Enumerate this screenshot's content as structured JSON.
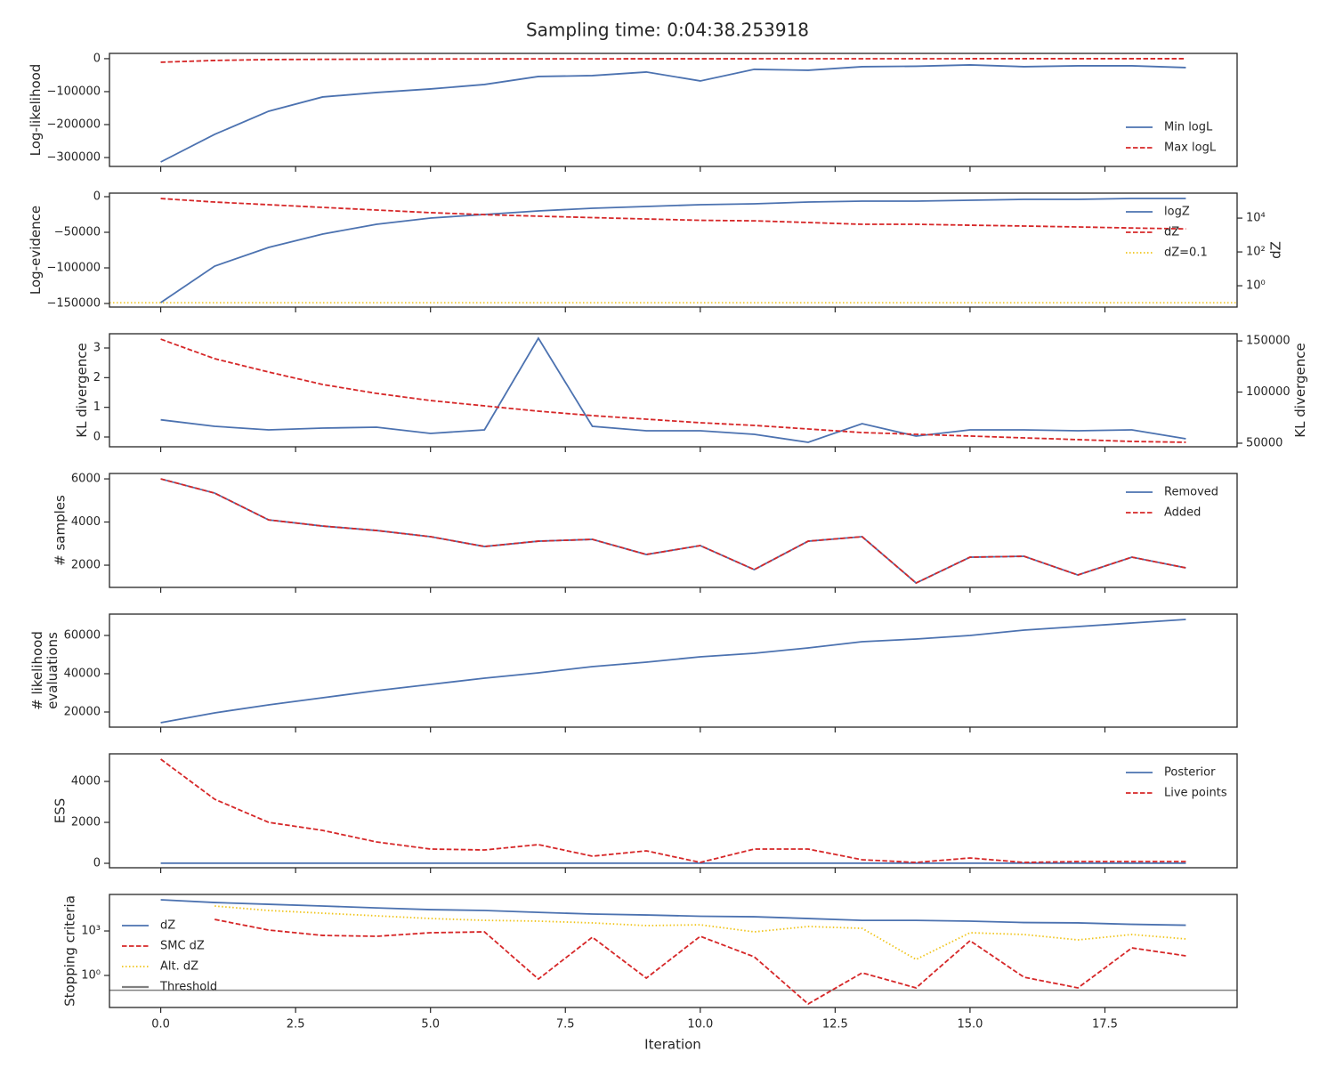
{
  "title": "Sampling time: 0:04:38.253918",
  "x_axis": {
    "label": "Iteration",
    "x": [
      0,
      1,
      2,
      3,
      4,
      5,
      6,
      7,
      8,
      9,
      10,
      11,
      12,
      13,
      14,
      15,
      16,
      17,
      18,
      19
    ],
    "xlim": [
      -0.95,
      19.95
    ],
    "xticks": [
      {
        "value": 0,
        "label": "0.0"
      },
      2.5,
      {
        "value": 5,
        "label": "5.0"
      },
      7.5,
      {
        "value": 10,
        "label": "10.0"
      },
      12.5,
      {
        "value": 15,
        "label": "15.0"
      },
      17.5
    ]
  },
  "chart_data": [
    {
      "type": "line",
      "ylabel": [
        "Log-likelihood"
      ],
      "ylim": [
        -327000,
        16000
      ],
      "yticks": [
        {
          "value": 0,
          "label": "0"
        },
        {
          "value": -100000,
          "label": "−100000"
        },
        {
          "value": -200000,
          "label": "−200000"
        },
        {
          "value": -300000,
          "label": "−300000"
        }
      ],
      "legend": "lower right",
      "series": [
        {
          "name": "Min logL",
          "color": "#4c72b0",
          "dash": "solid",
          "values": [
            -313500,
            -229700,
            -159500,
            -116200,
            -102700,
            -91900,
            -78400,
            -54100,
            -51400,
            -40500,
            -67600,
            -32400,
            -35100,
            -24300,
            -23000,
            -18900,
            -24300,
            -21600,
            -21600,
            -27000
          ]
        },
        {
          "name": "Max logL",
          "color": "#d62728",
          "dash": "dashed",
          "values": [
            -10800,
            -5400,
            -2700,
            -2000,
            -1500,
            -1000,
            -800,
            -600,
            -500,
            -400,
            -300,
            -300,
            -200,
            -200,
            -150,
            -100,
            -100,
            -100,
            -100,
            -100
          ]
        }
      ]
    },
    {
      "type": "line",
      "ylabel": [
        "Log-evidence"
      ],
      "ylim": [
        -155000,
        5000
      ],
      "yticks": [
        {
          "value": 0,
          "label": "0"
        },
        {
          "value": -50000,
          "label": "−50000"
        },
        {
          "value": -100000,
          "label": "−100000"
        },
        {
          "value": -150000,
          "label": "−150000"
        }
      ],
      "y2label": "dZ",
      "y2scale": "log",
      "y2lim": [
        0.055,
        300000
      ],
      "y2ticks": [
        {
          "value": 1,
          "label": "10⁰"
        },
        {
          "value": 100,
          "label": "10²"
        },
        {
          "value": 10000,
          "label": "10⁴"
        }
      ],
      "legend": "upper right",
      "series": [
        {
          "name": "logZ",
          "color": "#4c72b0",
          "dash": "solid",
          "values": [
            -148750,
            -97500,
            -71250,
            -52500,
            -38750,
            -30000,
            -25000,
            -20000,
            -16250,
            -13750,
            -11250,
            -10000,
            -7500,
            -6250,
            -6250,
            -5000,
            -3750,
            -3750,
            -2500,
            -2500
          ]
        },
        {
          "name": "dZ",
          "color": "#d62728",
          "dash": "dashed",
          "axis": "y2",
          "values": [
            144000,
            89000,
            62000,
            43000,
            30000,
            21000,
            16000,
            13000,
            10700,
            8900,
            7400,
            6900,
            5500,
            4300,
            4300,
            3800,
            3400,
            3000,
            2600,
            2300
          ]
        }
      ],
      "hlines": [
        {
          "name": "dZ=0.1",
          "color": "#f0c419",
          "dash": "dotted",
          "axis": "y2",
          "value": 0.1
        }
      ]
    },
    {
      "type": "line",
      "ylabel": [
        "KL divergence"
      ],
      "ylim": [
        -0.33,
        3.48
      ],
      "yticks": [
        0,
        1,
        2,
        3
      ],
      "y2label": "KL divergence",
      "y2lim": [
        46500,
        157000
      ],
      "y2ticks": [
        50000,
        100000,
        150000
      ],
      "series": [
        {
          "color": "#4c72b0",
          "dash": "solid",
          "values": [
            0.58,
            0.36,
            0.24,
            0.3,
            0.33,
            0.12,
            0.24,
            3.33,
            0.36,
            0.21,
            0.21,
            0.09,
            -0.18,
            0.45,
            0.03,
            0.24,
            0.24,
            0.21,
            0.24,
            -0.06
          ]
        },
        {
          "color": "#d62728",
          "dash": "dashed",
          "axis": "y2",
          "values": [
            151700,
            132600,
            119600,
            107400,
            98700,
            91700,
            86500,
            81300,
            77000,
            73500,
            70000,
            67400,
            63900,
            60400,
            58700,
            57000,
            55200,
            53500,
            51700,
            50900
          ]
        }
      ]
    },
    {
      "type": "line",
      "ylabel": [
        "# samples"
      ],
      "ylim": [
        970,
        6250
      ],
      "yticks": [
        2000,
        4000,
        6000
      ],
      "legend": "upper right",
      "series": [
        {
          "name": "Removed",
          "color": "#4c72b0",
          "dash": "solid",
          "values": [
            6000,
            5340,
            4100,
            3814,
            3608,
            3320,
            2866,
            3113,
            3196,
            2495,
            2907,
            1794,
            3113,
            3320,
            1175,
            2371,
            2412,
            1546,
            2371,
            1876
          ]
        },
        {
          "name": "Added",
          "color": "#d62728",
          "dash": "dashed",
          "values": [
            6000,
            5340,
            4100,
            3814,
            3608,
            3320,
            2866,
            3113,
            3196,
            2495,
            2907,
            1794,
            3113,
            3320,
            1175,
            2371,
            2412,
            1546,
            2371,
            1876
          ]
        }
      ]
    },
    {
      "type": "line",
      "ylabel": [
        "# likelihood",
        "evaluations"
      ],
      "ylim": [
        12090,
        71160
      ],
      "yticks": [
        20000,
        40000,
        60000
      ],
      "series": [
        {
          "color": "#4c72b0",
          "dash": "solid",
          "values": [
            14420,
            19540,
            23720,
            27440,
            31160,
            34420,
            37670,
            40470,
            43720,
            46050,
            48840,
            50700,
            53490,
            56740,
            58140,
            60000,
            62790,
            64650,
            66510,
            68370
          ]
        }
      ]
    },
    {
      "type": "line",
      "ylabel": [
        "ESS"
      ],
      "ylim": [
        -217,
        5348
      ],
      "yticks": [
        0,
        2000,
        4000
      ],
      "legend": "upper right",
      "series": [
        {
          "name": "Posterior",
          "color": "#4c72b0",
          "dash": "solid",
          "values": [
            5,
            5,
            5,
            5,
            5,
            5,
            5,
            5,
            5,
            5,
            5,
            5,
            5,
            5,
            5,
            5,
            5,
            5,
            5,
            5
          ]
        },
        {
          "name": "Live points",
          "color": "#d62728",
          "dash": "dashed",
          "values": [
            5087,
            3130,
            2000,
            1609,
            1043,
            696,
            652,
            913,
            348,
            609,
            43,
            696,
            696,
            174,
            43,
            261,
            43,
            87,
            87,
            87
          ]
        }
      ]
    },
    {
      "type": "line",
      "ylabel": [
        "Stopping criteria"
      ],
      "yscale": "log",
      "ylim": [
        0.0069,
        290000
      ],
      "yticks": [
        {
          "value": 1,
          "label": "10⁰"
        },
        {
          "value": 1000,
          "label": "10³"
        }
      ],
      "legend": "center left",
      "series": [
        {
          "name": "dZ",
          "color": "#4c72b0",
          "dash": "solid",
          "values": [
            126000,
            83000,
            63000,
            48000,
            36000,
            27500,
            24000,
            18000,
            13800,
            12000,
            9800,
            9100,
            6900,
            5200,
            5200,
            4600,
            3700,
            3500,
            2800,
            2450
          ]
        },
        {
          "name": "SMC dZ",
          "color": "#d62728",
          "dash": "dashed",
          "values": [
            null,
            6000,
            1150,
            500,
            437,
            760,
            870,
            0.57,
            380,
            0.66,
            437,
            18,
            0.012,
            1.5,
            0.145,
            220,
            0.76,
            0.145,
            72,
            21
          ]
        },
        {
          "name": "Alt. dZ",
          "color": "#f0c419",
          "dash": "dotted",
          "values": [
            null,
            48000,
            24000,
            15800,
            10500,
            6900,
            5200,
            4600,
            3500,
            2300,
            2600,
            870,
            2000,
            1500,
            12,
            760,
            575,
            250,
            575,
            290
          ]
        }
      ],
      "hlines": [
        {
          "name": "Threshold",
          "color": "#808080",
          "dash": "solid",
          "value": 0.1
        }
      ]
    }
  ]
}
